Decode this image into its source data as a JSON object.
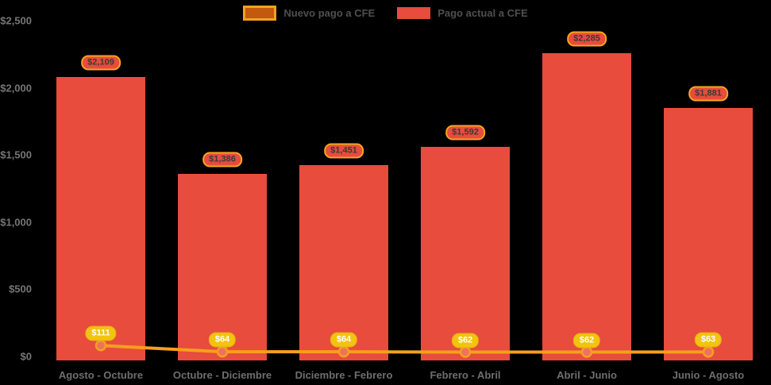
{
  "legend": {
    "items": [
      {
        "label": "Nuevo pago a CFE"
      },
      {
        "label": "Pago actual a CFE"
      }
    ]
  },
  "chart_data": {
    "type": "combo-bar-line",
    "categories": [
      "Agosto - Octubre",
      "Octubre - Diciembre",
      "Diciembre - Febrero",
      "Febrero - Abril",
      "Abril - Junio",
      "Junio - Agosto"
    ],
    "series": [
      {
        "name": "Pago actual a CFE",
        "type": "bar",
        "color": "#e74c3c",
        "values": [
          2109,
          1386,
          1451,
          1592,
          2285,
          1881
        ],
        "data_labels": [
          "$2,109",
          "$1,386",
          "$1,451",
          "$1,592",
          "$2,285",
          "$1,881"
        ]
      },
      {
        "name": "Nuevo pago a CFE",
        "type": "line",
        "color": "#f5a01d",
        "marker_fill": "#ee7163",
        "marker_stroke": "#f5a11d",
        "values": [
          111,
          64,
          64,
          62,
          62,
          63
        ],
        "data_labels": [
          "$111",
          "$64",
          "$64",
          "$62",
          "$62",
          "$63"
        ]
      }
    ],
    "y_axis": {
      "ticks": [
        0,
        500,
        1000,
        1500,
        2000,
        2500
      ],
      "tick_labels": [
        "$0",
        "$500",
        "$1,000",
        "$1,500",
        "$2,000",
        "$2,500"
      ],
      "range": [
        0,
        2500
      ]
    },
    "grid": false,
    "legend_position": "top-center",
    "background": "#000000"
  },
  "colors": {
    "background": "#000000",
    "bar": "#e74c3c",
    "line": "#f5a01d",
    "marker_fill": "#ee7163",
    "marker_stroke": "#f5a11d",
    "bar_pill_fill": "#e74c3c",
    "bar_pill_border": "#f7a51c",
    "bar_pill_text": "#3a3a3a",
    "line_pill_fill": "#f2c40d",
    "line_pill_text": "#ffffff",
    "axis_text": "#6e6e6e",
    "legend_text": "#4f4f4f"
  }
}
